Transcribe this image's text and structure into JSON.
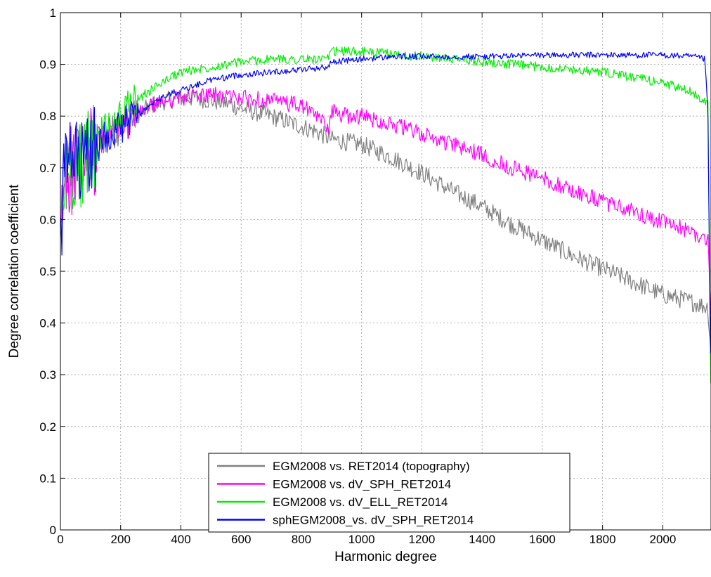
{
  "chart_data": {
    "type": "line",
    "xlabel": "Harmonic degree",
    "ylabel": "Degree correlation coefficient",
    "xlim": [
      0,
      2160
    ],
    "ylim": [
      0,
      1
    ],
    "x_ticks": [
      0,
      200,
      400,
      600,
      800,
      1000,
      1200,
      1400,
      1600,
      1800,
      2000
    ],
    "x_tick_labels": [
      "0",
      "200",
      "400",
      "600",
      "800",
      "1000",
      "1200",
      "1400",
      "1600",
      "1800",
      "2000"
    ],
    "y_ticks": [
      0,
      0.1,
      0.2,
      0.3,
      0.4,
      0.5,
      0.6,
      0.7,
      0.8,
      0.9,
      1
    ],
    "y_tick_labels": [
      "0",
      "0.1",
      "0.2",
      "0.3",
      "0.4",
      "0.5",
      "0.6",
      "0.7",
      "0.8",
      "0.9",
      "1"
    ],
    "grid": true,
    "legend_position": "lower-center",
    "series": [
      {
        "name": "EGM2008 vs. RET2014 (topography)",
        "color": "#808080",
        "noise": 0.018,
        "x": [
          2,
          10,
          20,
          40,
          60,
          80,
          100,
          150,
          200,
          250,
          300,
          350,
          400,
          450,
          500,
          550,
          600,
          700,
          800,
          850,
          900,
          1000,
          1100,
          1200,
          1300,
          1400,
          1500,
          1600,
          1700,
          1800,
          1900,
          2000,
          2100,
          2150,
          2155,
          2160
        ],
        "y": [
          0.55,
          0.65,
          0.68,
          0.7,
          0.71,
          0.7,
          0.73,
          0.76,
          0.78,
          0.8,
          0.82,
          0.83,
          0.835,
          0.835,
          0.83,
          0.825,
          0.815,
          0.8,
          0.78,
          0.77,
          0.755,
          0.745,
          0.72,
          0.69,
          0.655,
          0.625,
          0.59,
          0.56,
          0.53,
          0.505,
          0.48,
          0.455,
          0.44,
          0.43,
          0.38,
          0.34
        ]
      },
      {
        "name": "EGM2008 vs. dV_SPH_RET2014",
        "color": "#ff00ff",
        "noise": 0.016,
        "x": [
          2,
          10,
          20,
          40,
          60,
          80,
          100,
          150,
          200,
          250,
          300,
          350,
          400,
          450,
          500,
          550,
          600,
          700,
          800,
          850,
          890,
          900,
          950,
          1000,
          1100,
          1200,
          1300,
          1400,
          1500,
          1600,
          1700,
          1800,
          1900,
          2000,
          2100,
          2150,
          2155,
          2160
        ],
        "y": [
          0.55,
          0.66,
          0.69,
          0.7,
          0.71,
          0.7,
          0.73,
          0.76,
          0.78,
          0.8,
          0.82,
          0.83,
          0.835,
          0.84,
          0.84,
          0.84,
          0.835,
          0.83,
          0.82,
          0.8,
          0.78,
          0.81,
          0.8,
          0.8,
          0.785,
          0.765,
          0.745,
          0.725,
          0.7,
          0.68,
          0.655,
          0.635,
          0.615,
          0.595,
          0.575,
          0.56,
          0.48,
          0.4
        ]
      },
      {
        "name": "EGM2008 vs. dV_ELL_RET2014",
        "color": "#00ee00",
        "noise": 0.009,
        "x": [
          2,
          10,
          20,
          40,
          60,
          80,
          100,
          150,
          200,
          250,
          300,
          350,
          400,
          450,
          500,
          550,
          600,
          700,
          800,
          890,
          900,
          950,
          1000,
          1100,
          1200,
          1300,
          1400,
          1500,
          1600,
          1700,
          1800,
          1900,
          2000,
          2100,
          2150,
          2155,
          2160
        ],
        "y": [
          0.55,
          0.66,
          0.69,
          0.7,
          0.71,
          0.7,
          0.74,
          0.78,
          0.8,
          0.83,
          0.85,
          0.87,
          0.885,
          0.89,
          0.895,
          0.9,
          0.905,
          0.91,
          0.91,
          0.91,
          0.925,
          0.925,
          0.925,
          0.92,
          0.915,
          0.91,
          0.905,
          0.9,
          0.895,
          0.89,
          0.885,
          0.875,
          0.865,
          0.845,
          0.825,
          0.5,
          0.23
        ]
      },
      {
        "name": "sphEGM2008_vs. dV_SPH_RET2014",
        "color": "#0000ff",
        "noise": 0.006,
        "x": [
          2,
          10,
          20,
          40,
          60,
          80,
          100,
          150,
          200,
          250,
          300,
          350,
          400,
          450,
          500,
          550,
          600,
          700,
          800,
          890,
          900,
          1000,
          1100,
          1200,
          1400,
          1600,
          1800,
          2000,
          2100,
          2140,
          2150,
          2155,
          2160
        ],
        "y": [
          0.55,
          0.67,
          0.7,
          0.71,
          0.71,
          0.7,
          0.73,
          0.76,
          0.78,
          0.8,
          0.82,
          0.84,
          0.85,
          0.86,
          0.87,
          0.875,
          0.88,
          0.885,
          0.89,
          0.895,
          0.905,
          0.91,
          0.915,
          0.915,
          0.915,
          0.918,
          0.918,
          0.918,
          0.915,
          0.91,
          0.8,
          0.5,
          0.3
        ]
      }
    ]
  }
}
